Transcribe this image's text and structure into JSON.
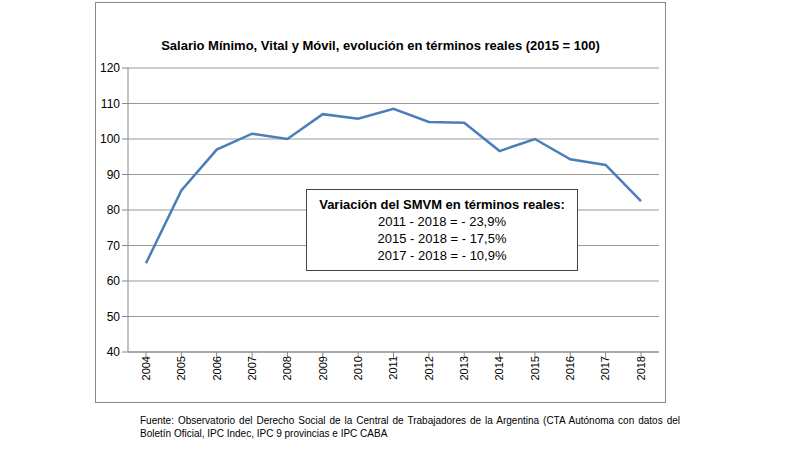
{
  "chart_data": {
    "type": "line",
    "title": "Salario Mínimo, Vital y Móvil, evolución en términos reales (2015 = 100)",
    "categories": [
      "2004",
      "2005",
      "2006",
      "2007",
      "2008",
      "2009",
      "2010",
      "2011",
      "2012",
      "2013",
      "2014",
      "2015",
      "2016",
      "2017",
      "2018"
    ],
    "values": [
      65,
      85.5,
      97,
      101.5,
      100,
      107,
      105.7,
      108.5,
      104.8,
      104.6,
      96.6,
      100,
      94.3,
      92.7,
      82.5
    ],
    "color": "#4a7ebb",
    "ylim": [
      40,
      120
    ],
    "yticks": [
      40,
      50,
      60,
      70,
      80,
      90,
      100,
      110,
      120
    ],
    "grid": true,
    "annotation": {
      "title": "Variación del SMVM en términos reales:",
      "lines": [
        "2011 - 2018 = - 23,9%",
        "2015 - 2018 = - 17,5%",
        "2017 - 2018 = - 10,9%"
      ]
    },
    "source": "Fuente: Observatorio del Derecho Social de la Central de Trabajadores de la Argentina (CTA Autónoma con datos del Boletín Oficial, IPC Indec, IPC 9 provincias e IPC CABA"
  }
}
